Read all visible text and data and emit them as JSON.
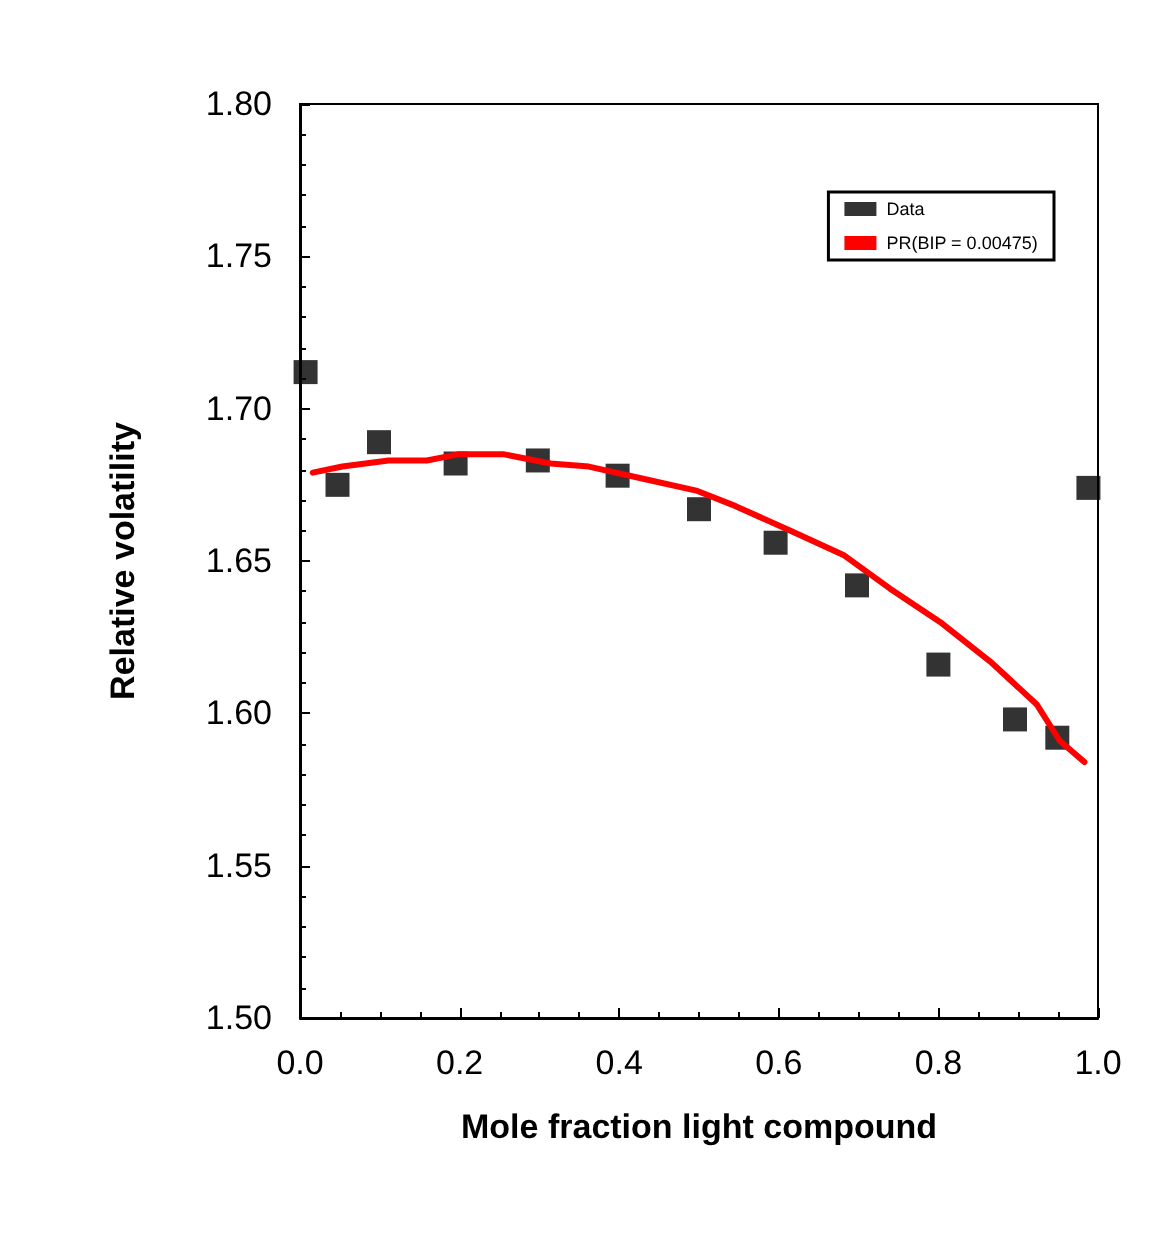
{
  "chart_data": {
    "type": "scatter",
    "xlabel": "Mole fraction light compound",
    "ylabel": "Relative volatility",
    "xlim": [
      0,
      1
    ],
    "xticks": [
      {
        "value": 0,
        "label": "0.0"
      },
      0.2,
      0.4,
      0.6,
      0.8,
      {
        "value": 1,
        "label": "1.0"
      }
    ],
    "ylim": [
      1.5,
      1.8
    ],
    "yticks": [
      {
        "value": 1.5,
        "label": "1.50"
      },
      1.55,
      {
        "value": 1.6,
        "label": "1.60"
      },
      1.65,
      {
        "value": 1.7,
        "label": "1.70"
      },
      1.75,
      {
        "value": 1.8,
        "label": "1.80"
      }
    ],
    "grid": false,
    "legend": "top right",
    "series": [
      {
        "name": "Data",
        "type": "scatter",
        "marker": "square",
        "color": "#000000",
        "x": [
          0.007,
          0.047,
          0.099,
          0.195,
          0.298,
          0.398,
          0.5,
          0.596,
          0.698,
          0.8,
          0.896,
          0.949,
          0.988
        ],
        "values": [
          1.712,
          1.675,
          1.689,
          1.682,
          1.683,
          1.678,
          1.667,
          1.656,
          1.642,
          1.616,
          1.598,
          1.592,
          1.674
        ]
      },
      {
        "name": "PR(BIP = 0.00475)",
        "type": "line",
        "marker": "none",
        "line_style": "solid",
        "color": "#ff0000",
        "x": [
          0.016,
          0.053,
          0.111,
          0.159,
          0.198,
          0.256,
          0.314,
          0.362,
          0.43,
          0.498,
          0.546,
          0.614,
          0.681,
          0.739,
          0.802,
          0.865,
          0.923,
          0.952,
          0.983
        ],
        "values": [
          1.679,
          1.681,
          1.683,
          1.683,
          1.685,
          1.685,
          1.682,
          1.681,
          1.677,
          1.673,
          1.668,
          1.66,
          1.652,
          1.641,
          1.63,
          1.617,
          1.603,
          1.591,
          1.584
        ]
      }
    ]
  }
}
